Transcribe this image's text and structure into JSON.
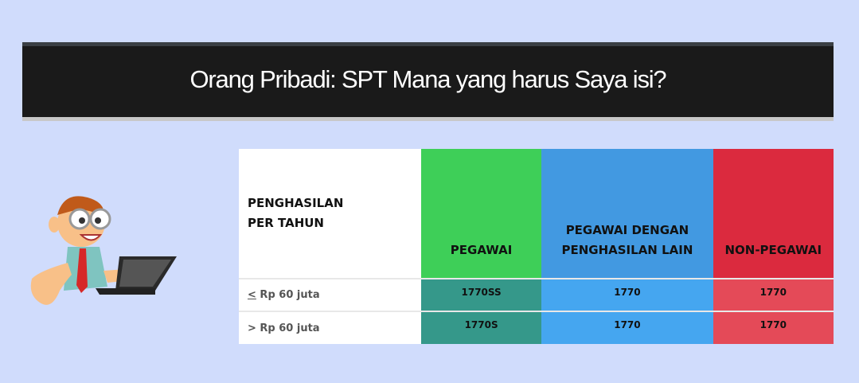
{
  "header": {
    "title": "Orang Pribadi: SPT Mana yang harus Saya isi?"
  },
  "table": {
    "columns": [
      "PENGHASILAN PER TAHUN",
      "PEGAWAI",
      "PEGAWAI DENGAN PENGHASILAN LAIN",
      "NON-PEGAWAI"
    ],
    "rows": [
      {
        "label": "< Rp 60 juta",
        "label_prefix": "<",
        "label_rest": " Rp 60 juta",
        "values": [
          "1770SS",
          "1770",
          "1770"
        ]
      },
      {
        "label": "> Rp 60 juta",
        "values": [
          "1770S",
          "1770",
          "1770"
        ]
      }
    ]
  },
  "colors": {
    "background": "#d0dcfc",
    "pegawai": "#3ecf58",
    "pegawai_lain": "#4299e1",
    "non_pegawai": "#db2a3e"
  },
  "illustration": "man-with-laptop"
}
